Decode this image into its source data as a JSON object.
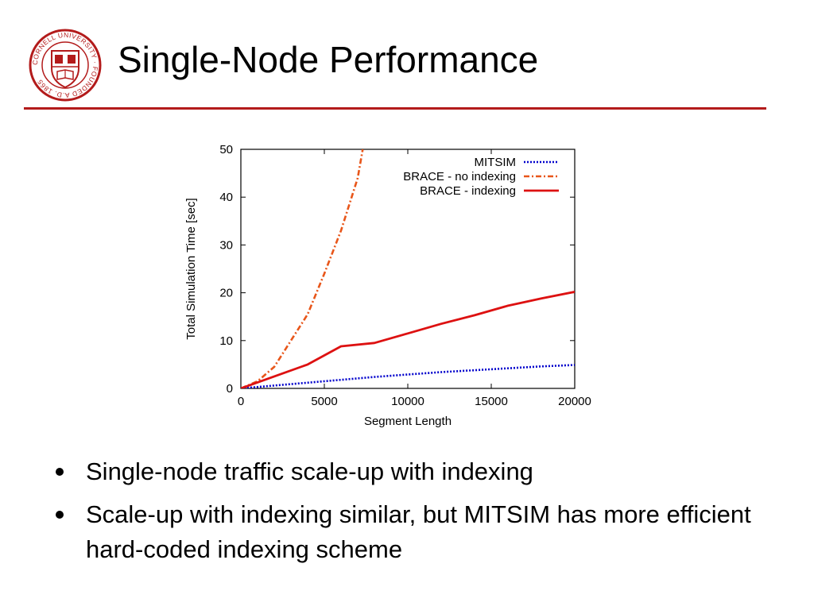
{
  "slide": {
    "title": "Single-Node Performance",
    "accent_color": "#b31b1b",
    "logo": {
      "icon": "cornell-university-seal-icon",
      "ring_text": "CORNELL UNIVERSITY · FOUNDED A.D. 1865"
    }
  },
  "bullets": [
    {
      "text": "Single-node traffic scale-up with indexing"
    },
    {
      "text": "Scale-up with indexing similar, but MITSIM has more efficient hard-coded indexing scheme"
    }
  ],
  "chart_data": {
    "type": "line",
    "title": "",
    "xlabel": "Segment Length",
    "ylabel": "Total Simulation Time [sec]",
    "xlim": [
      0,
      20000
    ],
    "ylim": [
      0,
      50
    ],
    "xticks": [
      "0",
      "5000",
      "10000",
      "15000",
      "20000"
    ],
    "yticks": [
      "0",
      "10",
      "20",
      "30",
      "40",
      "50"
    ],
    "grid": false,
    "legend_position": "top-right",
    "series": [
      {
        "name": "MITSIM",
        "color": "#0000cc",
        "style": "dotted",
        "x": [
          0,
          2000,
          4000,
          6000,
          8000,
          10000,
          12000,
          14000,
          16000,
          18000,
          20000
        ],
        "y": [
          0,
          0.6,
          1.2,
          1.8,
          2.4,
          2.9,
          3.4,
          3.8,
          4.2,
          4.6,
          4.9
        ]
      },
      {
        "name": "BRACE - no indexing",
        "color": "#e8561a",
        "style": "dashdot",
        "x": [
          0,
          1000,
          2000,
          3000,
          4000,
          5000,
          6000,
          7000,
          7300
        ],
        "y": [
          0,
          1.5,
          4.5,
          10,
          15.5,
          24,
          33,
          44,
          50
        ]
      },
      {
        "name": "BRACE - indexing",
        "color": "#dd1111",
        "style": "solid",
        "x": [
          0,
          2000,
          4000,
          6000,
          8000,
          10000,
          12000,
          14000,
          16000,
          18000,
          20000
        ],
        "y": [
          0,
          2.5,
          5,
          8.8,
          9.5,
          11.5,
          13.5,
          15.3,
          17.3,
          18.8,
          20.2
        ]
      }
    ]
  }
}
